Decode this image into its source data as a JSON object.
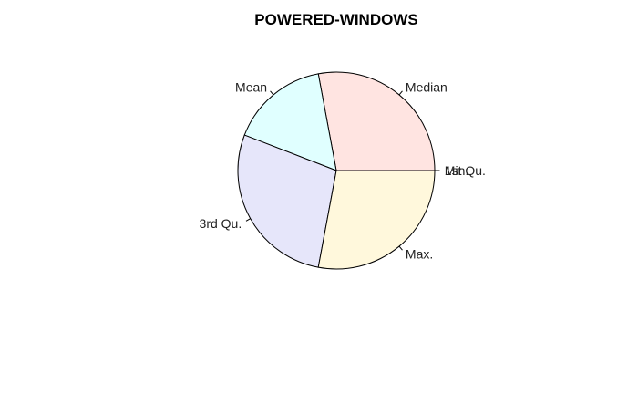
{
  "chart_data": {
    "type": "pie",
    "title": "POWERED-WINDOWS",
    "slices": [
      {
        "label": "Min.",
        "value": 0,
        "color": "#ffffff"
      },
      {
        "label": "1st Qu.",
        "value": 0,
        "color": "#ffffff"
      },
      {
        "label": "Median",
        "value": 1,
        "color": "#ffe4e1"
      },
      {
        "label": "Mean",
        "value": 0.58,
        "color": "#e0ffff"
      },
      {
        "label": "3rd Qu.",
        "value": 1,
        "color": "#e6e6fa"
      },
      {
        "label": "Max.",
        "value": 1,
        "color": "#fff8dc"
      }
    ],
    "start_angle_deg": 0,
    "direction": "counterclockwise",
    "legend": "none"
  }
}
